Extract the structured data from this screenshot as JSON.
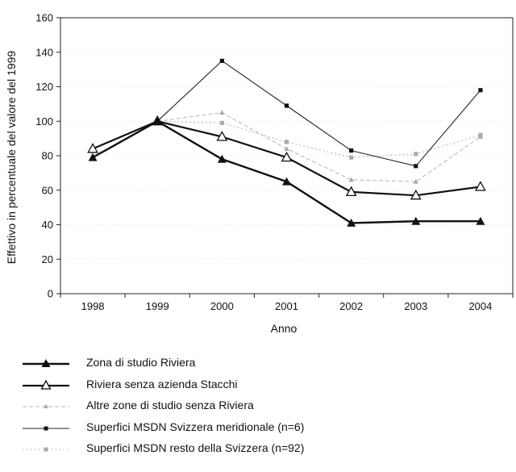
{
  "chart_data": {
    "type": "line",
    "title": "",
    "xlabel": "Anno",
    "ylabel": "Effettivo in percentuale del valore del 1999",
    "x": [
      "1998",
      "1999",
      "2000",
      "2001",
      "2002",
      "2003",
      "2004"
    ],
    "ylim": [
      0,
      160
    ],
    "yticks": [
      0,
      20,
      40,
      60,
      80,
      100,
      120,
      140,
      160
    ],
    "grid": true,
    "legend_position": "bottom",
    "series": [
      {
        "name": "Zona di studio Riviera",
        "values": [
          79,
          100,
          78,
          65,
          41,
          42,
          42
        ],
        "color": "#111111",
        "marker": "filled-triangle",
        "line": "solid-thick"
      },
      {
        "name": "Riviera senza azienda Stacchi",
        "values": [
          84,
          100,
          91,
          79,
          59,
          57,
          62
        ],
        "color": "#111111",
        "marker": "open-triangle",
        "line": "solid-thick"
      },
      {
        "name": "Altre zone di studio senza Riviera",
        "values": [
          null,
          100,
          105,
          84,
          66,
          65,
          91
        ],
        "color": "#b5b5b5",
        "marker": "small-gray-triangle",
        "line": "dashed"
      },
      {
        "name": "Superfici MSDN Svizzera meridionale (n=6)",
        "values": [
          null,
          100,
          135,
          109,
          83,
          74,
          118
        ],
        "color": "#222222",
        "marker": "filled-square",
        "line": "solid-thin"
      },
      {
        "name": "Superfici MSDN resto della Svizzera (n=92)",
        "values": [
          null,
          100,
          99,
          88,
          79,
          81,
          92
        ],
        "color": "#b0b0b0",
        "marker": "gray-square",
        "line": "dotted"
      }
    ]
  }
}
